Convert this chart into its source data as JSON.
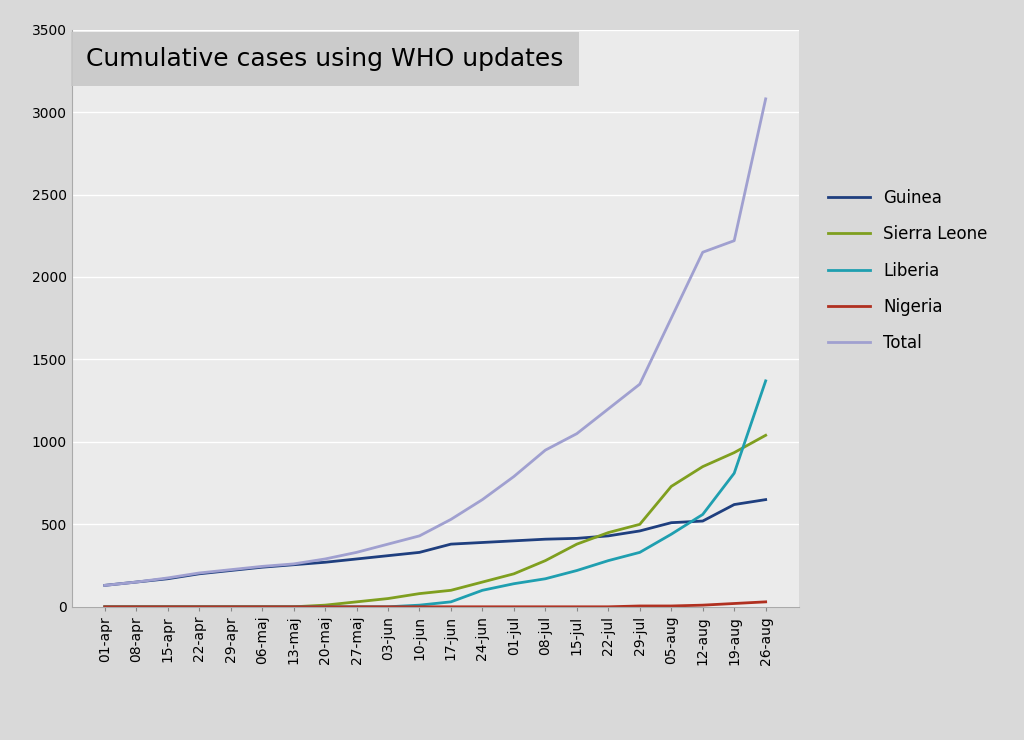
{
  "title": "Cumulative cases using WHO updates",
  "background_color": "#d9d9d9",
  "plot_bg_color": "#ebebeb",
  "tick_labels": [
    "01-apr",
    "08-apr",
    "15-apr",
    "22-apr",
    "29-apr",
    "06-maj",
    "13-maj",
    "20-maj",
    "27-maj",
    "03-jun",
    "10-jun",
    "17-jun",
    "24-jun",
    "01-jul",
    "08-jul",
    "15-jul",
    "22-jul",
    "29-jul",
    "05-aug",
    "12-aug",
    "19-aug",
    "26-aug"
  ],
  "guinea": [
    130,
    150,
    170,
    200,
    220,
    240,
    255,
    270,
    290,
    310,
    330,
    380,
    390,
    400,
    410,
    415,
    430,
    460,
    510,
    520,
    620,
    650
  ],
  "sierra_leone": [
    0,
    0,
    0,
    0,
    0,
    0,
    0,
    10,
    30,
    50,
    80,
    100,
    150,
    200,
    280,
    380,
    450,
    500,
    730,
    850,
    935,
    1040
  ],
  "liberia": [
    0,
    0,
    0,
    0,
    0,
    0,
    0,
    0,
    0,
    0,
    10,
    30,
    100,
    140,
    170,
    220,
    280,
    330,
    440,
    560,
    810,
    1370
  ],
  "nigeria": [
    0,
    0,
    0,
    0,
    0,
    0,
    0,
    0,
    0,
    0,
    0,
    0,
    0,
    0,
    0,
    0,
    0,
    5,
    5,
    10,
    20,
    30
  ],
  "total": [
    130,
    150,
    175,
    205,
    225,
    245,
    260,
    290,
    330,
    380,
    430,
    530,
    650,
    790,
    950,
    1050,
    1200,
    1350,
    1750,
    2150,
    2220,
    3080
  ],
  "guinea_color": "#1f3f7f",
  "sierra_leone_color": "#7f9f1f",
  "liberia_color": "#1f9fb0",
  "nigeria_color": "#b03020",
  "total_color": "#a0a0d0",
  "ylim": [
    0,
    3500
  ],
  "yticks": [
    0,
    500,
    1000,
    1500,
    2000,
    2500,
    3000,
    3500
  ],
  "title_fontsize": 18,
  "tick_fontsize": 10,
  "legend_fontsize": 12,
  "line_width": 2.0
}
